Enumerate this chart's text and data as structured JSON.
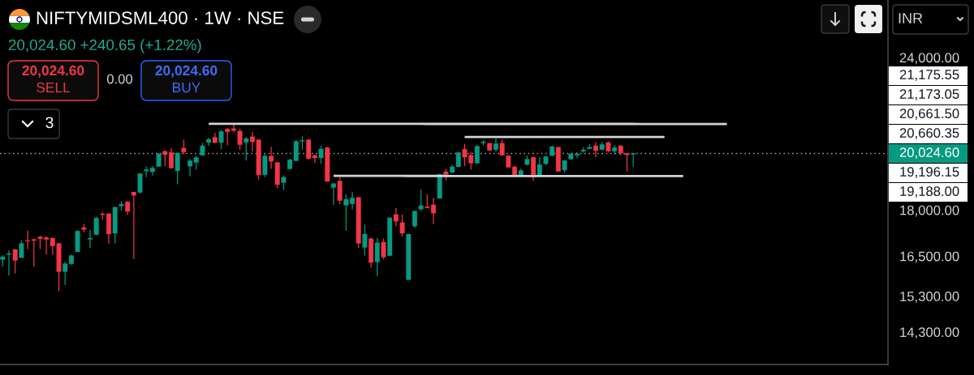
{
  "chart_data": {
    "type": "candlestick",
    "title": "NIFTYMIDSML400 · 1W · NSE",
    "subtitle": "20,024.60 +240.65 (+1.22%)",
    "categories": [
      null,
      null,
      null,
      null,
      null,
      null,
      null,
      null,
      null,
      null,
      null,
      null,
      null,
      null,
      null,
      null,
      null,
      null,
      null,
      null,
      null,
      null,
      null,
      null,
      null,
      null,
      null,
      null,
      null,
      null,
      null,
      null,
      null,
      null,
      null,
      null,
      null,
      null,
      null,
      null,
      null,
      null,
      null,
      null,
      null,
      null,
      null,
      null,
      null,
      null,
      null,
      null,
      null,
      null,
      null,
      null,
      null,
      null,
      null,
      null,
      null,
      null,
      null,
      null,
      null,
      null,
      null,
      null,
      null,
      null,
      null,
      null,
      null,
      null,
      null,
      null,
      null,
      null,
      null,
      null,
      null,
      null,
      null,
      null,
      null,
      null,
      null,
      null,
      null,
      null,
      null,
      null,
      null,
      null,
      null,
      null,
      null,
      null,
      null,
      null,
      null,
      null,
      null,
      null,
      null,
      null,
      null,
      null,
      null,
      null,
      null,
      null,
      null,
      null,
      null,
      null,
      null
    ],
    "ohlc": [
      [
        16390,
        16530,
        16180,
        16480
      ],
      [
        16550,
        16680,
        15910,
        16580
      ],
      [
        16710,
        16720,
        15970,
        16370
      ],
      [
        16450,
        17000,
        16450,
        16900
      ],
      [
        17000,
        17310,
        16720,
        16970
      ],
      [
        17030,
        17050,
        16180,
        16990
      ],
      [
        17110,
        17150,
        16730,
        17050
      ],
      [
        17090,
        17130,
        16550,
        17030
      ],
      [
        17070,
        17090,
        16550,
        16820
      ],
      [
        16900,
        16920,
        15450,
        16020
      ],
      [
        16020,
        16320,
        15630,
        16270
      ],
      [
        16260,
        16550,
        16230,
        16520
      ],
      [
        16630,
        17320,
        16630,
        17300
      ],
      [
        17410,
        17530,
        17260,
        17350
      ],
      [
        17030,
        17340,
        16760,
        17070
      ],
      [
        17180,
        17770,
        17160,
        17730
      ],
      [
        17870,
        17930,
        17680,
        17840
      ],
      [
        17880,
        17890,
        16900,
        17200
      ],
      [
        17230,
        18110,
        16900,
        18100
      ],
      [
        18140,
        18290,
        17980,
        18200
      ],
      [
        18280,
        18310,
        17840,
        17950
      ],
      [
        18620,
        18620,
        16410,
        18500
      ],
      [
        18610,
        19290,
        18560,
        19280
      ],
      [
        19370,
        19530,
        19160,
        19430
      ],
      [
        19340,
        19560,
        19210,
        19480
      ],
      [
        19540,
        20040,
        19530,
        20010
      ],
      [
        20110,
        20140,
        19560,
        19980
      ],
      [
        20060,
        20220,
        19460,
        19480
      ],
      [
        19380,
        20050,
        18900,
        20050
      ],
      [
        20230,
        20550,
        20010,
        20080
      ],
      [
        19550,
        19810,
        19190,
        19750
      ],
      [
        19690,
        19930,
        19430,
        19870
      ],
      [
        19960,
        20420,
        19940,
        20320
      ],
      [
        20440,
        20630,
        20320,
        20570
      ],
      [
        20650,
        20810,
        20420,
        20440
      ],
      [
        20440,
        20930,
        20190,
        20880
      ],
      [
        20970,
        21010,
        20340,
        20860
      ],
      [
        20990,
        21170,
        20860,
        20910
      ],
      [
        20890,
        20980,
        20170,
        20360
      ],
      [
        20450,
        20650,
        19760,
        20600
      ],
      [
        20670,
        20850,
        20110,
        20470
      ],
      [
        20550,
        20570,
        19070,
        19230
      ],
      [
        19240,
        19990,
        19160,
        19930
      ],
      [
        19930,
        20270,
        19460,
        19730
      ],
      [
        19690,
        19690,
        18760,
        18880
      ],
      [
        18950,
        19210,
        18700,
        19150
      ],
      [
        19450,
        19830,
        19430,
        19790
      ],
      [
        19750,
        20530,
        19730,
        20490
      ],
      [
        20490,
        20690,
        20170,
        20530
      ],
      [
        20550,
        20580,
        19810,
        19830
      ],
      [
        19960,
        19980,
        19680,
        19860
      ],
      [
        19860,
        20320,
        19650,
        20200
      ],
      [
        20250,
        20270,
        19000,
        19000
      ],
      [
        18780,
        18940,
        18180,
        18920
      ],
      [
        19010,
        19140,
        18200,
        18320
      ],
      [
        18160,
        18540,
        17310,
        18370
      ],
      [
        18210,
        18620,
        18030,
        18420
      ],
      [
        18440,
        18440,
        16760,
        16900
      ],
      [
        16770,
        17510,
        16520,
        17200
      ],
      [
        17050,
        17090,
        16150,
        16300
      ],
      [
        16320,
        17070,
        15890,
        16920
      ],
      [
        16940,
        17050,
        16410,
        16470
      ],
      [
        16510,
        17740,
        16500,
        17740
      ],
      [
        17850,
        18060,
        17460,
        17620
      ],
      [
        17580,
        17840,
        17120,
        17230
      ],
      [
        15780,
        17200,
        15780,
        17200
      ],
      [
        17460,
        17980,
        17410,
        17960
      ],
      [
        18030,
        18700,
        17960,
        18150
      ],
      [
        18110,
        18540,
        18060,
        18070
      ],
      [
        18180,
        18420,
        17530,
        17890
      ],
      [
        18400,
        19270,
        18400,
        19250
      ],
      [
        19350,
        19450,
        19040,
        19250
      ],
      [
        19320,
        19610,
        19310,
        19530
      ],
      [
        19530,
        20080,
        19510,
        20060
      ],
      [
        20190,
        20390,
        19560,
        19880
      ],
      [
        19960,
        20060,
        19430,
        19660
      ],
      [
        19660,
        20350,
        19650,
        20300
      ],
      [
        20420,
        20530,
        20340,
        20470
      ],
      [
        20420,
        20420,
        20140,
        20140
      ],
      [
        20170,
        20600,
        20110,
        20400
      ],
      [
        20420,
        20550,
        19940,
        19960
      ],
      [
        19940,
        19960,
        19490,
        19510
      ],
      [
        19530,
        19570,
        19190,
        19230
      ],
      [
        19230,
        19450,
        19190,
        19390
      ],
      [
        19610,
        19950,
        19580,
        19810
      ],
      [
        19880,
        19910,
        19020,
        19160
      ],
      [
        19230,
        19880,
        19210,
        19610
      ],
      [
        19640,
        19930,
        19590,
        19910
      ],
      [
        19940,
        20320,
        19930,
        20290
      ],
      [
        20260,
        20280,
        19330,
        19360
      ],
      [
        19410,
        19780,
        19310,
        19760
      ],
      [
        19810,
        20030,
        19790,
        20010
      ],
      [
        19960,
        20070,
        19840,
        20010
      ],
      [
        20110,
        20260,
        20060,
        20160
      ],
      [
        20200,
        20370,
        20200,
        20260
      ],
      [
        20320,
        20450,
        19890,
        20130
      ],
      [
        20170,
        20470,
        20130,
        20370
      ],
      [
        20440,
        20490,
        20090,
        20110
      ],
      [
        20110,
        20340,
        19990,
        20250
      ],
      [
        20320,
        20340,
        19960,
        20040
      ],
      [
        20030,
        20030,
        19360,
        19970
      ],
      [
        19990,
        20024.6,
        19540,
        20024.6
      ],
      null,
      null,
      null,
      null,
      null,
      null,
      null,
      null,
      null,
      null,
      null,
      null,
      null,
      null,
      null
    ],
    "colors": [
      "#089981",
      "#089981",
      "#f23645",
      "#089981",
      "#f23645",
      "#f23645",
      "#f23645",
      "#f23645",
      "#f23645",
      "#f23645",
      "#089981",
      "#089981",
      "#089981",
      "#f23645",
      "#089981",
      "#089981",
      "#f23645",
      "#f23645",
      "#089981",
      "#089981",
      "#f23645",
      "#f23645",
      "#089981",
      "#089981",
      "#089981",
      "#089981",
      "#f23645",
      "#f23645",
      "#089981",
      "#f23645",
      "#089981",
      "#089981",
      "#089981",
      "#089981",
      "#f23645",
      "#089981",
      "#f23645",
      "#f23645",
      "#f23645",
      "#089981",
      "#f23645",
      "#f23645",
      "#089981",
      "#f23645",
      "#f23645",
      "#089981",
      "#089981",
      "#089981",
      "#089981",
      "#f23645",
      "#f23645",
      "#089981",
      "#f23645",
      "#089981",
      "#f23645",
      "#089981",
      "#089981",
      "#f23645",
      "#089981",
      "#f23645",
      "#089981",
      "#f23645",
      "#089981",
      "#f23645",
      "#f23645",
      "#089981",
      "#089981",
      "#089981",
      "#f23645",
      "#f23645",
      "#089981",
      "#f23645",
      "#089981",
      "#089981",
      "#f23645",
      "#f23645",
      "#089981",
      "#089981",
      "#f23645",
      "#089981",
      "#f23645",
      "#f23645",
      "#f23645",
      "#089981",
      "#089981",
      "#f23645",
      "#089981",
      "#089981",
      "#089981",
      "#f23645",
      "#089981",
      "#089981",
      "#089981",
      "#089981",
      "#089981",
      "#f23645",
      "#089981",
      "#f23645",
      "#089981",
      "#f23645",
      "#f23645",
      "#089981",
      null,
      null,
      null,
      null,
      null,
      null,
      null,
      null,
      null,
      null,
      null,
      null,
      null,
      null,
      null
    ],
    "series": [
      {
        "type": "line",
        "color": "#d1d4dc",
        "values": [
          null,
          null,
          null,
          null,
          null,
          null,
          null,
          null,
          null,
          null,
          null,
          null,
          null,
          null,
          null,
          null,
          null,
          null,
          null,
          null,
          null,
          null,
          null,
          null,
          null,
          null,
          null,
          null,
          null,
          null,
          null,
          null,
          null,
          21175.55,
          21175,
          21175,
          21175,
          21175,
          21175,
          21175,
          21175,
          21175,
          21175,
          21175,
          21175,
          21175,
          21175,
          21175,
          21175,
          21175,
          21175,
          21175,
          21175,
          21175,
          21175,
          21175,
          21175,
          21175,
          21175,
          21175,
          21175,
          21175,
          21175,
          21175,
          21175,
          21175,
          21175,
          21175,
          21174,
          21174,
          21174,
          21174,
          21174,
          21174,
          21174,
          21174,
          21174,
          21174,
          21174,
          21174,
          21174,
          21174,
          21174,
          21174,
          21174,
          21174,
          21174,
          21174,
          21174,
          21174,
          21174,
          21174,
          21174,
          21174,
          21174,
          21174,
          21174,
          21174,
          21174,
          21174,
          21174,
          21174,
          21173,
          21173,
          21173,
          21173,
          21173,
          21173,
          21173,
          21173,
          21173,
          21173,
          21173,
          21173,
          21173,
          21173,
          21173.05
        ]
      },
      {
        "type": "line",
        "color": "#d1d4dc",
        "values": [
          null,
          null,
          null,
          null,
          null,
          null,
          null,
          null,
          null,
          null,
          null,
          null,
          null,
          null,
          null,
          null,
          null,
          null,
          null,
          null,
          null,
          null,
          null,
          null,
          null,
          null,
          null,
          null,
          null,
          null,
          null,
          null,
          null,
          null,
          null,
          null,
          null,
          null,
          null,
          null,
          null,
          null,
          null,
          null,
          null,
          null,
          null,
          null,
          null,
          null,
          null,
          null,
          null,
          null,
          null,
          null,
          null,
          null,
          null,
          null,
          null,
          null,
          null,
          null,
          null,
          null,
          null,
          null,
          null,
          null,
          null,
          null,
          null,
          null,
          20661.5,
          20661,
          20661,
          20661,
          20661,
          20661,
          20661,
          20661,
          20661,
          20661,
          20661,
          20661,
          20661,
          20661,
          20661,
          20661,
          20661,
          20661,
          20661,
          20661,
          20661,
          20661,
          20661,
          20661,
          20661,
          20661,
          20661,
          20661,
          20660,
          20660,
          20660,
          20660,
          20660.35,
          null,
          null,
          null,
          null,
          null,
          null,
          null,
          null,
          null,
          null
        ]
      },
      {
        "type": "line",
        "color": "#d1d4dc",
        "values": [
          null,
          null,
          null,
          null,
          null,
          null,
          null,
          null,
          null,
          null,
          null,
          null,
          null,
          null,
          null,
          null,
          null,
          null,
          null,
          null,
          null,
          null,
          null,
          null,
          null,
          null,
          null,
          null,
          null,
          null,
          null,
          null,
          null,
          null,
          null,
          null,
          null,
          null,
          null,
          null,
          null,
          null,
          null,
          null,
          null,
          null,
          null,
          null,
          null,
          null,
          null,
          null,
          null,
          19196.15,
          19196,
          19196,
          19196,
          19196,
          19195,
          19195,
          19195,
          19195,
          19195,
          19195,
          19195,
          19194,
          19194,
          19194,
          19194,
          19194,
          19194,
          19194,
          19193,
          19193,
          19193,
          19193,
          19193,
          19193,
          19193,
          19192,
          19192,
          19192,
          19192,
          19192,
          19192,
          19191,
          19191,
          19191,
          19191,
          19191,
          19191,
          19191,
          19190,
          19190,
          19190,
          19190,
          19190,
          19190,
          19190,
          19189,
          19189,
          19189,
          19189,
          19189,
          19189,
          19189,
          19188,
          19188,
          19188,
          19188,
          null,
          null,
          null,
          null,
          null,
          null,
          null
        ]
      }
    ],
    "ylim": [
      13450,
      26750
    ],
    "log": true,
    "yticks": [
      {
        "value": 24000,
        "label": "24,000.00"
      },
      {
        "value": 18000,
        "label": "18,000.00"
      },
      {
        "value": 16500,
        "label": "16,500.00"
      },
      {
        "value": 15300,
        "label": "15,300.00"
      },
      {
        "value": 14300,
        "label": "14,300.00"
      }
    ],
    "tick_labels": "y",
    "ref_lines": [
      {
        "axis": "y",
        "value": 20024.6,
        "label": "20,024.60",
        "color": "#9598a1",
        "line_style": "dotted"
      }
    ],
    "annotations": [
      "20,024.60",
      "SELL",
      "0.00",
      "20,024.60",
      "BUY",
      "3",
      "INR",
      "21,175.55",
      "21,173.05",
      "20,661.50",
      "20,660.35",
      "19,196.15",
      "19,188.00"
    ]
  }
}
